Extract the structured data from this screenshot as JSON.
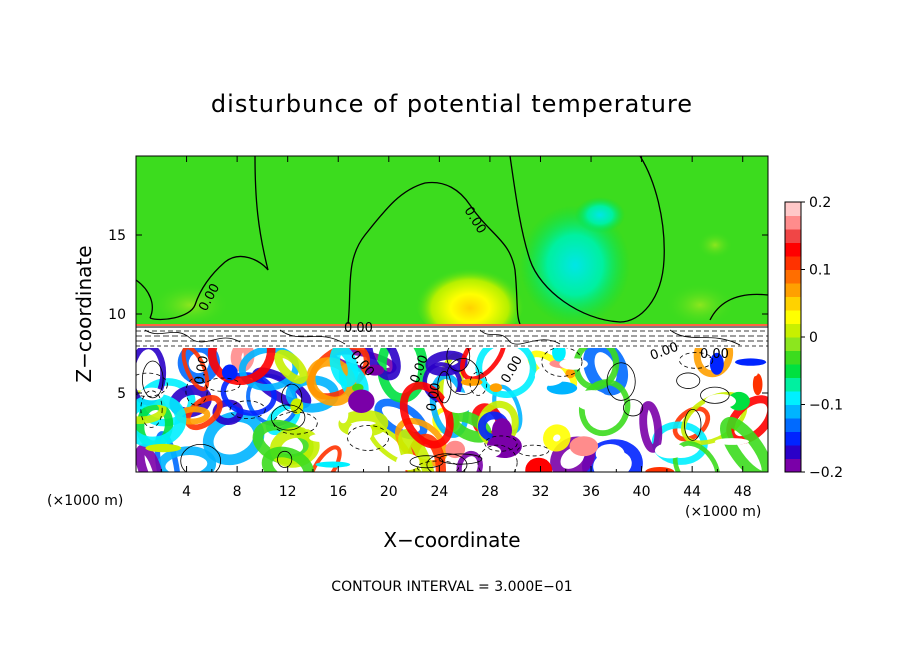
{
  "chart_data": {
    "type": "heatmap",
    "title": "disturbunce of potential temperature",
    "xlabel": "X−coordinate",
    "ylabel": "Z−coordinate",
    "x_unit_left": "(×1000 m)",
    "x_unit_right": "(×1000 m)",
    "xlim": [
      0,
      50
    ],
    "ylim": [
      0,
      20
    ],
    "x_ticks": [
      "4",
      "8",
      "12",
      "16",
      "20",
      "24",
      "28",
      "32",
      "36",
      "40",
      "44",
      "48"
    ],
    "y_ticks": [
      "5",
      "10",
      "15"
    ],
    "contour_labels": [
      "0.00",
      "0.00",
      "0.00",
      "0.00",
      "0.00",
      "0.00",
      "0.00",
      "0.00",
      "0.00",
      "0.00"
    ],
    "colorbar": {
      "min": -0.2,
      "max": 0.2,
      "tick_labels": [
        "0.2",
        "0.1",
        "0",
        "−0.1",
        "−0.2"
      ],
      "colors": [
        "#7a00a8",
        "#2a00c8",
        "#0024ff",
        "#006aff",
        "#00b4ff",
        "#00f0ff",
        "#00f0a0",
        "#00e040",
        "#3cdc1e",
        "#8ce61e",
        "#c8f000",
        "#ffff00",
        "#ffd200",
        "#ffa000",
        "#ff6e00",
        "#ff3200",
        "#ff0000",
        "#f04646",
        "#ff8c8c",
        "#ffc8c8"
      ]
    },
    "grid": false,
    "legend": "colorbar-right"
  },
  "footer": {
    "contour_interval": "CONTOUR INTERVAL = 3.000E−01"
  }
}
